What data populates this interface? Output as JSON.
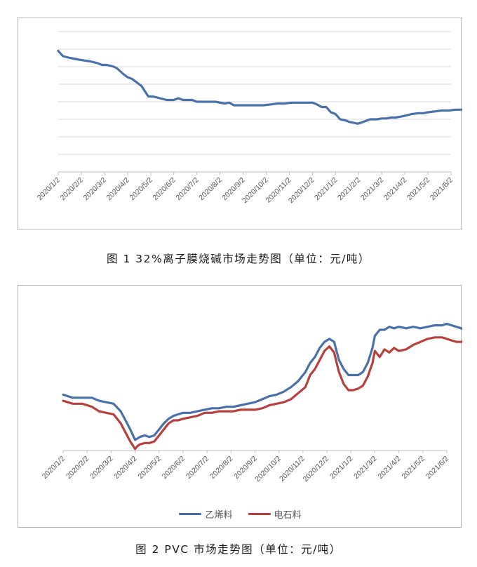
{
  "figures": [
    {
      "caption": "图 1   32%离子膜烧碱市场走势图（单位：元/吨）"
    },
    {
      "caption": "图 2   PVC 市场走势图（单位：元/吨）"
    }
  ],
  "chart_data": [
    {
      "type": "line",
      "title": "",
      "xlabel": "",
      "ylabel": "",
      "y_tick_labels_visible": false,
      "grid": true,
      "categories": [
        "2020/1/2",
        "2020/2/2",
        "2020/3/2",
        "2020/4/2",
        "2020/5/2",
        "2020/6/2",
        "2020/7/2",
        "2020/8/2",
        "2020/9/2",
        "2020/10/2",
        "2020/11/2",
        "2020/12/2",
        "2021/1/2",
        "2021/2/2",
        "2021/3/2",
        "2021/4/2",
        "2021/5/2",
        "2021/6/2"
      ],
      "ylim": [
        0,
        8
      ],
      "series": [
        {
          "name": "",
          "color": "#4a70a8",
          "x": [
            0,
            0.2,
            0.5,
            0.9,
            1.4,
            1.7,
            1.9,
            2.1,
            2.4,
            2.55,
            2.8,
            3.0,
            3.2,
            3.4,
            3.6,
            3.8,
            3.9,
            4.1,
            4.4,
            4.7,
            5.0,
            5.2,
            5.4,
            5.6,
            5.8,
            6.0,
            6.4,
            6.8,
            7.2,
            7.4,
            7.6,
            7.8,
            8.0,
            8.3,
            8.6,
            8.9,
            9.2,
            9.5,
            9.8,
            10.1,
            10.4,
            10.7,
            11.0,
            11.2,
            11.4,
            11.6,
            11.8,
            12.0,
            12.2,
            12.4,
            12.6,
            12.8,
            12.95,
            13.2,
            13.5,
            13.8,
            14.0,
            14.2,
            14.4,
            14.6,
            14.8,
            15.0,
            15.3,
            15.6,
            15.8,
            16.0,
            16.3,
            16.6,
            16.9,
            17.2,
            17.5,
            17.8,
            18.0
          ],
          "values": [
            6.9,
            6.6,
            6.5,
            6.4,
            6.3,
            6.2,
            6.1,
            6.1,
            6.0,
            5.9,
            5.6,
            5.4,
            5.3,
            5.1,
            4.9,
            4.5,
            4.3,
            4.3,
            4.2,
            4.1,
            4.1,
            4.2,
            4.1,
            4.1,
            4.1,
            4.0,
            4.0,
            4.0,
            3.9,
            3.95,
            3.8,
            3.8,
            3.8,
            3.8,
            3.8,
            3.8,
            3.85,
            3.9,
            3.9,
            3.95,
            3.95,
            3.95,
            3.95,
            3.85,
            3.7,
            3.7,
            3.4,
            3.3,
            3.0,
            2.95,
            2.85,
            2.8,
            2.75,
            2.85,
            3.0,
            3.0,
            3.05,
            3.05,
            3.1,
            3.1,
            3.15,
            3.2,
            3.3,
            3.35,
            3.35,
            3.4,
            3.45,
            3.5,
            3.5,
            3.55,
            3.55,
            3.6,
            3.7
          ]
        }
      ]
    },
    {
      "type": "line",
      "title": "",
      "xlabel": "",
      "ylabel": "",
      "y_tick_labels_visible": false,
      "grid": false,
      "legend_position": "bottom",
      "categories": [
        "2020/1/2",
        "2020/2/2",
        "2020/3/2",
        "2020/4/2",
        "2020/5/2",
        "2020/6/2",
        "2020/7/2",
        "2020/8/2",
        "2020/9/2",
        "2020/10/2",
        "2020/11/2",
        "2020/12/2",
        "2021/1/2",
        "2021/3/2",
        "2021/4/2",
        "2021/5/2",
        "2021/6/2"
      ],
      "ylim": [
        0,
        100
      ],
      "series": [
        {
          "name": "乙烯料",
          "color": "#4a70a8",
          "x": [
            0,
            0.2,
            0.4,
            0.8,
            1.2,
            1.5,
            1.8,
            2.1,
            2.4,
            2.6,
            2.8,
            3.0,
            3.1,
            3.2,
            3.4,
            3.6,
            3.8,
            4.0,
            4.2,
            4.4,
            4.6,
            4.8,
            5.0,
            5.3,
            5.6,
            5.9,
            6.2,
            6.5,
            6.8,
            7.1,
            7.4,
            7.7,
            8.0,
            8.3,
            8.6,
            8.9,
            9.2,
            9.5,
            9.8,
            10.1,
            10.3,
            10.5,
            10.7,
            10.9,
            11.1,
            11.3,
            11.5,
            11.7,
            11.9,
            12.1,
            12.3,
            12.5,
            12.7,
            12.9,
            13.0,
            13.2,
            13.4,
            13.6,
            13.8,
            14.0,
            14.3,
            14.6,
            14.9,
            15.2,
            15.5,
            15.8,
            16.0,
            16.2,
            16.4,
            16.6,
            16.8,
            17.0
          ],
          "values": [
            37,
            36,
            35,
            35,
            35,
            33,
            32,
            31,
            26,
            20,
            14,
            7,
            8,
            9,
            10,
            9,
            10,
            14,
            18,
            21,
            23,
            24,
            25,
            25,
            26,
            27,
            28,
            28,
            29,
            29,
            30,
            31,
            32,
            34,
            36,
            37,
            39,
            42,
            46,
            52,
            58,
            62,
            68,
            72,
            74,
            72,
            60,
            54,
            50,
            50,
            50,
            52,
            58,
            68,
            76,
            80,
            80,
            82,
            81,
            82,
            81,
            82,
            81,
            82,
            83,
            83,
            84,
            83,
            82,
            81,
            80,
            79
          ]
        },
        {
          "name": "电石料",
          "color": "#b5413e",
          "x": [
            0,
            0.2,
            0.4,
            0.8,
            1.2,
            1.5,
            1.8,
            2.1,
            2.4,
            2.6,
            2.8,
            3.0,
            3.1,
            3.2,
            3.4,
            3.6,
            3.8,
            4.0,
            4.2,
            4.4,
            4.6,
            4.8,
            5.0,
            5.3,
            5.6,
            5.9,
            6.2,
            6.5,
            6.8,
            7.1,
            7.4,
            7.7,
            8.0,
            8.3,
            8.6,
            8.9,
            9.2,
            9.5,
            9.8,
            10.1,
            10.3,
            10.5,
            10.7,
            10.9,
            11.1,
            11.3,
            11.5,
            11.7,
            11.9,
            12.1,
            12.3,
            12.5,
            12.7,
            12.9,
            13.0,
            13.2,
            13.4,
            13.6,
            13.8,
            14.0,
            14.3,
            14.6,
            14.9,
            15.2,
            15.5,
            15.8,
            16.0,
            16.2,
            16.4,
            16.6,
            16.8,
            17.0
          ],
          "values": [
            33,
            32,
            31,
            31,
            29,
            26,
            25,
            24,
            18,
            12,
            6,
            1,
            3,
            4,
            5,
            5,
            6,
            10,
            14,
            18,
            20,
            20,
            21,
            22,
            23,
            25,
            25,
            26,
            26,
            26,
            27,
            27,
            27,
            28,
            30,
            31,
            32,
            34,
            38,
            42,
            50,
            54,
            60,
            66,
            69,
            65,
            52,
            44,
            40,
            40,
            41,
            43,
            49,
            58,
            66,
            62,
            67,
            65,
            68,
            66,
            67,
            70,
            72,
            74,
            75,
            75,
            74,
            73,
            72,
            72,
            73,
            73
          ]
        }
      ]
    }
  ]
}
